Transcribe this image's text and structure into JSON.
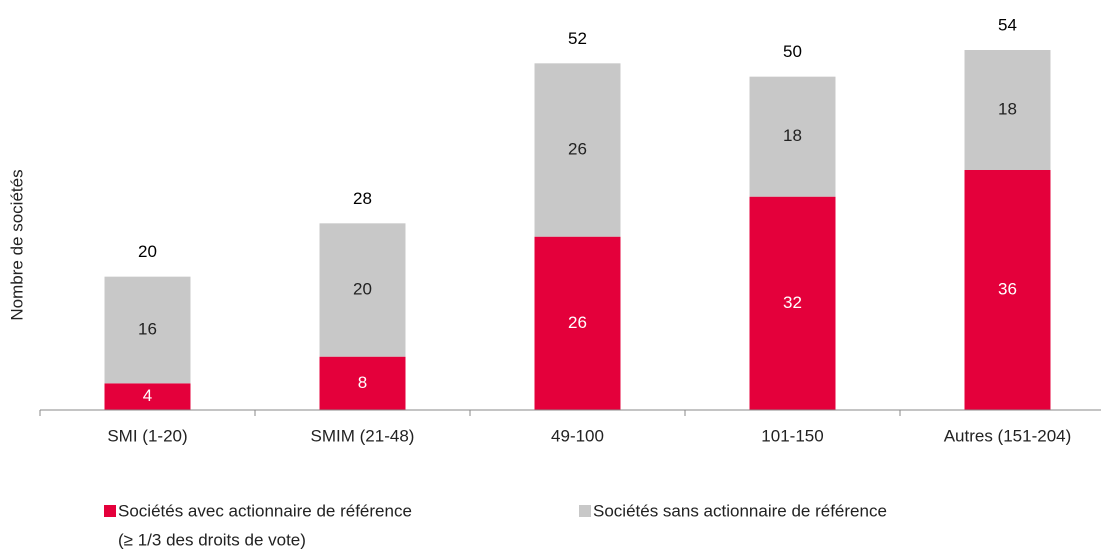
{
  "chart_data": {
    "type": "stacked_bar",
    "y_label": "Nombre de sociétés",
    "categories": [
      "SMI (1-20)",
      "SMIM (21-48)",
      "49-100",
      "101-150",
      "Autres (151-204)"
    ],
    "series": [
      {
        "name": "Sociétés avec actionnaire de référence",
        "color": "#e4003b",
        "values": [
          4,
          8,
          26,
          32,
          36
        ]
      },
      {
        "name": "Sociétés sans actionnaire de référence",
        "color": "#c8c8c8",
        "values": [
          16,
          20,
          26,
          18,
          18
        ]
      }
    ],
    "totals": [
      20,
      28,
      52,
      50,
      54
    ],
    "legend_note": "(≥ 1/3 des droits de vote)",
    "ylim": [
      0,
      60
    ]
  }
}
